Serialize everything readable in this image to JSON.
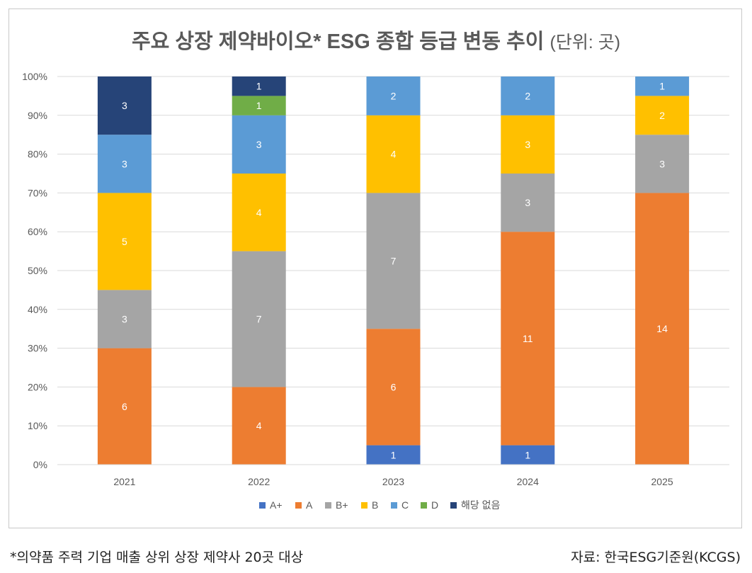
{
  "chart_data": {
    "type": "bar",
    "stacked": true,
    "normalized": true,
    "title": "주요 상장 제약바이오* ESG 종합 등급 변동 추이",
    "title_unit": "(단위: 곳)",
    "xlabel": "",
    "ylabel": "",
    "ylim": [
      0,
      100
    ],
    "y_ticks": [
      "0%",
      "10%",
      "20%",
      "30%",
      "40%",
      "50%",
      "60%",
      "70%",
      "80%",
      "90%",
      "100%"
    ],
    "categories": [
      "2021",
      "2022",
      "2023",
      "2024",
      "2025"
    ],
    "legend_position": "bottom",
    "grid": true,
    "series": [
      {
        "name": "A+",
        "color": "#4472C4",
        "values": [
          0,
          0,
          1,
          1,
          0
        ]
      },
      {
        "name": "A",
        "color": "#ED7D31",
        "values": [
          6,
          4,
          6,
          11,
          14
        ]
      },
      {
        "name": "B+",
        "color": "#A5A5A5",
        "values": [
          3,
          7,
          7,
          3,
          3
        ]
      },
      {
        "name": "B",
        "color": "#FFC000",
        "values": [
          5,
          4,
          4,
          3,
          2
        ]
      },
      {
        "name": "C",
        "color": "#5B9BD5",
        "values": [
          3,
          3,
          2,
          2,
          1
        ]
      },
      {
        "name": "D",
        "color": "#70AD47",
        "values": [
          0,
          1,
          0,
          0,
          0
        ]
      },
      {
        "name": "해당 없음",
        "color": "#264478",
        "values": [
          3,
          1,
          0,
          0,
          0
        ]
      }
    ]
  },
  "footnote_left": "*의약품 주력 기업 매출 상위 상장 제약사 20곳 대상",
  "footnote_right": "자료: 한국ESG기준원(KCGS)"
}
